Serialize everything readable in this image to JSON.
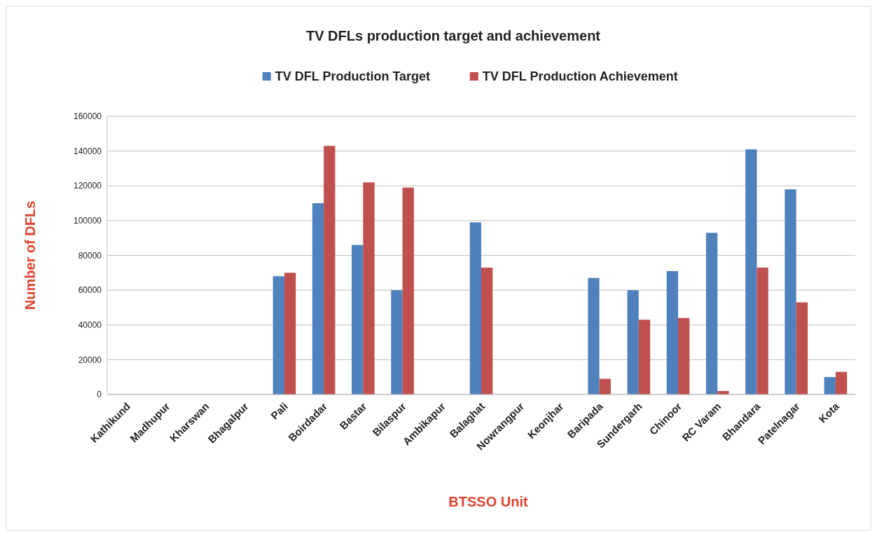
{
  "chart_data": {
    "type": "bar",
    "title": "TV DFLs production target and achievement",
    "xlabel": "BTSSO Unit",
    "ylabel": "Number of DFLs",
    "categories": [
      "Kathikund",
      "Madhupur",
      "Kharswan",
      "Bhagalpur",
      "Pali",
      "Boirdadar",
      "Bastar",
      "Bilaspur",
      "Ambikapur",
      "Balaghat",
      "Nowrangpur",
      "Keonjhar",
      "Baripada",
      "Sundergarh",
      "Chinoor",
      "RC Varam",
      "Bhandara",
      "Patelnagar",
      "Kota"
    ],
    "series": [
      {
        "name": "TV DFL Production Target",
        "color": "#4f81bd",
        "values": [
          0,
          0,
          0,
          0,
          68000,
          110000,
          86000,
          60000,
          0,
          99000,
          0,
          0,
          67000,
          60000,
          71000,
          93000,
          141000,
          118000,
          10000
        ]
      },
      {
        "name": "TV DFL Production Achievement",
        "color": "#c0504d",
        "values": [
          0,
          0,
          0,
          0,
          70000,
          143000,
          122000,
          119000,
          0,
          73000,
          0,
          0,
          9000,
          43000,
          44000,
          2000,
          73000,
          53000,
          13000
        ]
      }
    ],
    "ylim": [
      0,
      160000
    ],
    "yticks": [
      0,
      20000,
      40000,
      60000,
      80000,
      100000,
      120000,
      140000,
      160000
    ],
    "grid": "y",
    "legend": "top"
  }
}
